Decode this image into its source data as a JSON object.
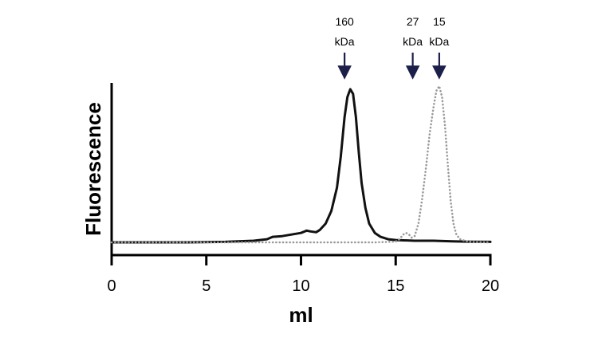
{
  "chart_data": {
    "type": "line",
    "title": "",
    "xlabel": "ml",
    "ylabel": "Fluorescence",
    "xlim": [
      0,
      20
    ],
    "ylim": [
      0,
      1
    ],
    "x_ticks": [
      0,
      5,
      10,
      15,
      20
    ],
    "x_tick_labels": [
      "0",
      "5",
      "10",
      "15",
      "20"
    ],
    "y_ticks_shown": false,
    "grid": false,
    "legend": "none",
    "series": [
      {
        "style": "solid",
        "color": "#111111",
        "x": [
          0,
          4,
          6,
          7.5,
          8.2,
          8.5,
          9,
          9.5,
          10,
          10.3,
          10.5,
          10.8,
          11,
          11.3,
          11.6,
          11.9,
          12.1,
          12.3,
          12.45,
          12.6,
          12.75,
          12.9,
          13.05,
          13.2,
          13.4,
          13.6,
          13.9,
          14.2,
          14.6,
          15,
          16,
          17,
          18,
          19,
          20
        ],
        "y": [
          0,
          0,
          0.003,
          0.01,
          0.02,
          0.035,
          0.04,
          0.05,
          0.06,
          0.075,
          0.07,
          0.065,
          0.08,
          0.12,
          0.2,
          0.35,
          0.55,
          0.8,
          0.93,
          0.98,
          0.95,
          0.8,
          0.58,
          0.38,
          0.22,
          0.12,
          0.06,
          0.035,
          0.02,
          0.015,
          0.01,
          0.01,
          0.006,
          0.004,
          0.003
        ]
      },
      {
        "style": "dotted",
        "color": "#999999",
        "x": [
          0,
          10,
          14,
          15,
          15.2,
          15.4,
          15.55,
          15.7,
          15.85,
          16,
          16.2,
          16.4,
          16.6,
          16.8,
          17,
          17.15,
          17.3,
          17.45,
          17.6,
          17.75,
          17.9,
          18.05,
          18.2,
          18.4,
          18.7,
          19,
          20
        ],
        "y": [
          0,
          0,
          0,
          0.005,
          0.02,
          0.05,
          0.06,
          0.05,
          0.03,
          0.04,
          0.12,
          0.28,
          0.48,
          0.7,
          0.87,
          0.97,
          1.0,
          0.93,
          0.75,
          0.5,
          0.27,
          0.12,
          0.05,
          0.02,
          0.008,
          0.002,
          0
        ]
      }
    ],
    "markers": [
      {
        "x": 12.3,
        "lines": [
          "160",
          "kDa"
        ]
      },
      {
        "x": 15.9,
        "lines": [
          "27",
          "kDa"
        ]
      },
      {
        "x": 17.3,
        "lines": [
          "15",
          "kDa"
        ]
      }
    ],
    "marker_color": "#1b1f4a"
  }
}
